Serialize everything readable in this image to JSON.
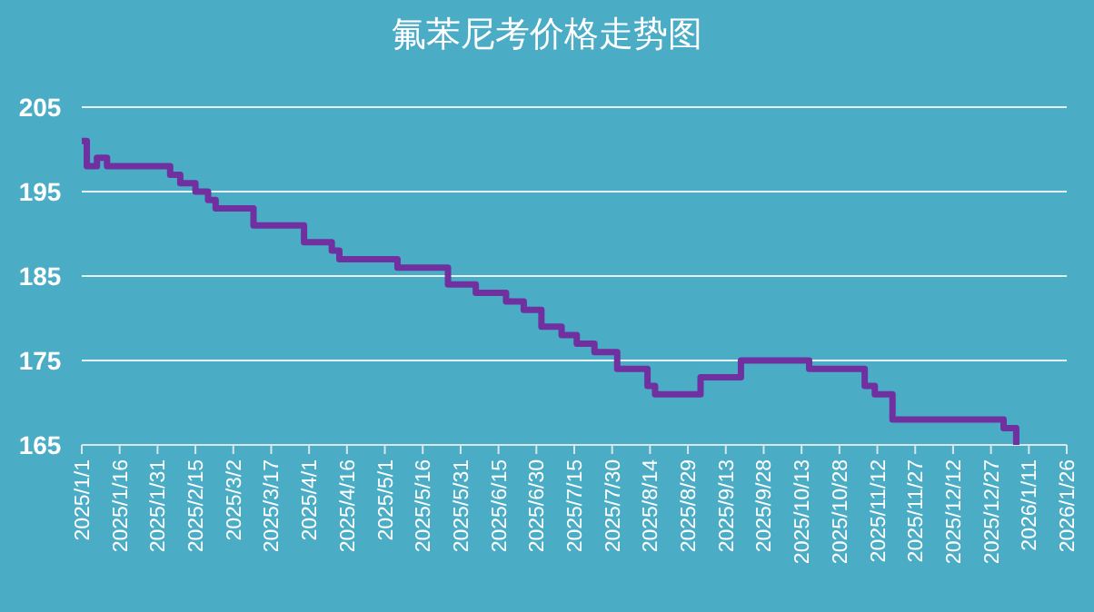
{
  "chart_data": {
    "type": "step",
    "title": "氟苯尼考价格走势图",
    "x": [
      "2025-01-01",
      "2025-01-03",
      "2025-01-07",
      "2025-01-11",
      "2025-02-05",
      "2025-02-09",
      "2025-02-15",
      "2025-02-20",
      "2025-02-23",
      "2025-03-10",
      "2025-03-30",
      "2025-04-10",
      "2025-04-13",
      "2025-05-06",
      "2025-05-26",
      "2025-06-06",
      "2025-06-18",
      "2025-06-25",
      "2025-07-02",
      "2025-07-10",
      "2025-07-16",
      "2025-07-23",
      "2025-08-01",
      "2025-08-13",
      "2025-08-16",
      "2025-09-03",
      "2025-09-19",
      "2025-10-16",
      "2025-11-07",
      "2025-11-11",
      "2025-11-18",
      "2026-01-01",
      "2026-01-06"
    ],
    "series": [
      {
        "color": "#7030a0",
        "values": [
          201,
          198,
          199,
          198,
          197,
          196,
          195,
          194,
          193,
          191,
          189,
          188,
          187,
          186,
          184,
          183,
          182,
          181,
          179,
          178,
          177,
          176,
          174,
          172,
          171,
          173,
          175,
          174,
          172,
          171,
          168,
          167,
          165
        ]
      }
    ],
    "xlim": [
      "2025-01-01",
      "2026-01-26"
    ],
    "xticks": [
      {
        "value": "2025-01-01",
        "label": "2025/1/1"
      },
      {
        "value": "2025-01-16",
        "label": "2025/1/16"
      },
      {
        "value": "2025-01-31",
        "label": "2025/1/31"
      },
      {
        "value": "2025-02-15",
        "label": "2025/2/15"
      },
      {
        "value": "2025-03-02",
        "label": "2025/3/2"
      },
      {
        "value": "2025-03-17",
        "label": "2025/3/17"
      },
      {
        "value": "2025-04-01",
        "label": "2025/4/1"
      },
      {
        "value": "2025-04-16",
        "label": "2025/4/16"
      },
      {
        "value": "2025-05-01",
        "label": "2025/5/1"
      },
      {
        "value": "2025-05-16",
        "label": "2025/5/16"
      },
      {
        "value": "2025-05-31",
        "label": "2025/5/31"
      },
      {
        "value": "2025-06-15",
        "label": "2025/6/15"
      },
      {
        "value": "2025-06-30",
        "label": "2025/6/30"
      },
      {
        "value": "2025-07-15",
        "label": "2025/7/15"
      },
      {
        "value": "2025-07-30",
        "label": "2025/7/30"
      },
      {
        "value": "2025-08-14",
        "label": "2025/8/14"
      },
      {
        "value": "2025-08-29",
        "label": "2025/8/29"
      },
      {
        "value": "2025-09-13",
        "label": "2025/9/13"
      },
      {
        "value": "2025-09-28",
        "label": "2025/9/28"
      },
      {
        "value": "2025-10-13",
        "label": "2025/10/13"
      },
      {
        "value": "2025-10-28",
        "label": "2025/10/28"
      },
      {
        "value": "2025-11-12",
        "label": "2025/11/12"
      },
      {
        "value": "2025-11-27",
        "label": "2025/11/27"
      },
      {
        "value": "2025-12-12",
        "label": "2025/12/12"
      },
      {
        "value": "2025-12-27",
        "label": "2025/12/27"
      },
      {
        "value": "2026-01-11",
        "label": "2026/1/11"
      },
      {
        "value": "2026-01-26",
        "label": "2026/1/26"
      }
    ],
    "ylim": [
      165,
      205
    ],
    "yticks": [
      165,
      175,
      185,
      195,
      205
    ],
    "grid": "y",
    "line_style": "solid"
  }
}
